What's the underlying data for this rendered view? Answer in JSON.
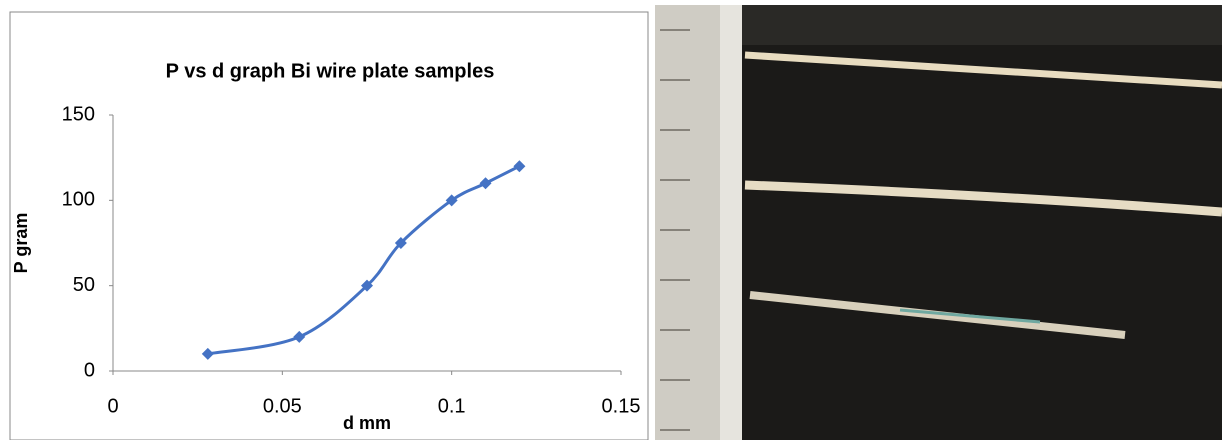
{
  "chart_data": {
    "type": "scatter",
    "title": "P vs d graph Bi wire plate  samples",
    "x_label": "d mm",
    "y_label": "P gram",
    "series": [
      {
        "name": "P",
        "color": "#4472c4",
        "x": [
          0.028,
          0.055,
          0.075,
          0.085,
          0.1,
          0.11,
          0.12
        ],
        "values": [
          10,
          20,
          50,
          75,
          100,
          110,
          120
        ]
      }
    ],
    "xlim": [
      0,
      0.15
    ],
    "xticks": [
      0,
      0.05,
      0.1,
      0.15
    ],
    "ylim": [
      0,
      150
    ],
    "yticks": [
      0,
      50,
      100,
      150
    ],
    "grid": false,
    "smooth": true
  }
}
